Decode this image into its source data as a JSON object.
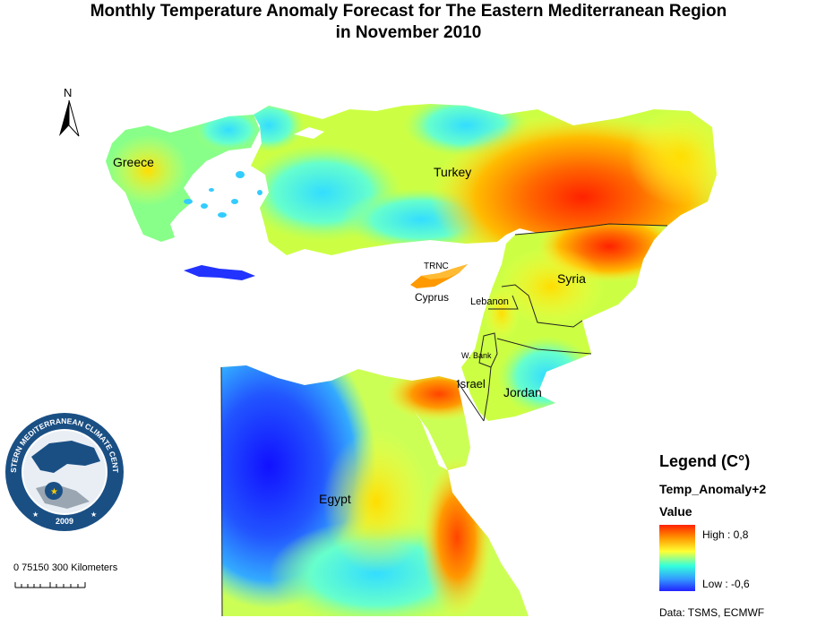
{
  "title": {
    "line1": "Monthly Temperature Anomaly Forecast for  The Eastern Mediterranean Region",
    "line2": "in November 2010"
  },
  "north_arrow": {
    "label": "N"
  },
  "countries": {
    "greece": "Greece",
    "turkey": "Turkey",
    "trnc": "TRNC",
    "cyprus": "Cyprus",
    "syria": "Syria",
    "lebanon": "Lebanon",
    "west_bank": "W. Bank",
    "israel": "Israel",
    "jordan": "Jordan",
    "egypt": "Egypt"
  },
  "logo": {
    "text": "EASTERN MEDITERRANEAN CLIMATE CENTRE",
    "year": "2009"
  },
  "scale_bar": {
    "labels": "0  75150    300  Kilometers"
  },
  "legend": {
    "title": "Legend (C°)",
    "layer": "Temp_Anomaly+2",
    "value_label": "Value",
    "high": "High : 0,8",
    "low": "Low : -0,6",
    "colors": [
      "#ff2200",
      "#ff9900",
      "#ffff33",
      "#33ffdd",
      "#3399ff",
      "#2222ff"
    ]
  },
  "data_source": "Data:  TSMS, ECMWF"
}
